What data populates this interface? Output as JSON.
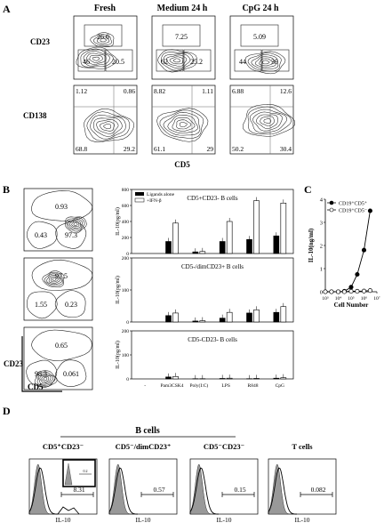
{
  "panel_labels": {
    "A": "A",
    "B": "B",
    "C": "C",
    "D": "D"
  },
  "panelA": {
    "col_titles": [
      "Fresh",
      "Medium 24 h",
      "CpG 24 h"
    ],
    "row_labels": [
      "CD23",
      "CD138"
    ],
    "x_label": "CD5",
    "row1": [
      {
        "top": "26.6",
        "left": "46",
        "right": "20.5"
      },
      {
        "top": "7.25",
        "left": "62",
        "right": "25.2"
      },
      {
        "top": "5.09",
        "left": "44",
        "right": "39"
      }
    ],
    "row2": [
      {
        "ul": "1.12",
        "ur": "0.86",
        "ll": "68.8",
        "lr": "29.2"
      },
      {
        "ul": "8.82",
        "ur": "1.11",
        "ll": "61.1",
        "lr": "29"
      },
      {
        "ul": "6.88",
        "ur": "12.6",
        "ll": "50.2",
        "lr": "30.4"
      }
    ]
  },
  "panelB": {
    "y_label": "CD23",
    "x_label": "CD5",
    "flow": [
      {
        "top": "0.93",
        "left": "0.43",
        "right": "97.3"
      },
      {
        "top": "97.5",
        "left": "1.55",
        "right": "0.23"
      },
      {
        "top": "0.65",
        "left": "98.3",
        "right": "0.061"
      }
    ],
    "legend": [
      "Ligands alone",
      "+IFN-β"
    ]
  },
  "chart_data": [
    {
      "type": "bar",
      "title": "CD5+CD23- B cells",
      "ylabel": "IL-10(pg/ml)",
      "ylim": [
        0,
        800
      ],
      "yticks": [
        "0",
        "200",
        "400",
        "600",
        "800"
      ],
      "categories": [
        "-",
        "Pam3CSK4",
        "Poly(I:C)",
        "LPS",
        "R848",
        "CpG"
      ],
      "series": [
        {
          "name": "Ligands alone",
          "values": [
            0,
            150,
            20,
            150,
            175,
            220
          ]
        },
        {
          "name": "+IFN-β",
          "values": [
            0,
            380,
            25,
            400,
            660,
            630
          ]
        }
      ]
    },
    {
      "type": "bar",
      "title": "CD5-/dimCD23+ B cells",
      "ylabel": "IL-10(pg/ml)",
      "ylim": [
        0,
        200
      ],
      "yticks": [
        "0",
        "100",
        "200"
      ],
      "categories": [
        "-",
        "Pam3CSK4",
        "Poly(I:C)",
        "LPS",
        "R848",
        "CpG"
      ],
      "series": [
        {
          "name": "Ligands alone",
          "values": [
            0,
            20,
            3,
            12,
            28,
            30
          ]
        },
        {
          "name": "+IFN-β",
          "values": [
            0,
            28,
            4,
            30,
            38,
            48
          ]
        }
      ]
    },
    {
      "type": "bar",
      "title": "CD5-CD23- B cells",
      "ylabel": "IL-10(pg/ml)",
      "ylim": [
        0,
        200
      ],
      "yticks": [
        "0",
        "100",
        "200"
      ],
      "categories": [
        "-",
        "Pam3CSK4",
        "Poly(I:C)",
        "LPS",
        "R848",
        "CpG"
      ],
      "series": [
        {
          "name": "Ligands alone",
          "values": [
            0,
            8,
            1,
            2,
            1,
            3
          ]
        },
        {
          "name": "+IFN-β",
          "values": [
            0,
            10,
            1,
            3,
            2,
            5
          ]
        }
      ]
    },
    {
      "type": "line",
      "ylabel": "IL-10(ng/ml)",
      "xlabel": "Cell Number",
      "ylim": [
        0,
        4
      ],
      "yticks": [
        "0",
        "1",
        "2",
        "3",
        "4"
      ],
      "x_log": true,
      "xticks": [
        "10³",
        "10⁴",
        "10⁵",
        "10⁶",
        "10⁷"
      ],
      "series": [
        {
          "name": "CD19⁺CD5⁺",
          "x": [
            1000,
            3000,
            10000,
            30000,
            100000,
            300000,
            1000000,
            3000000
          ],
          "values": [
            0,
            0,
            0,
            0.02,
            0.2,
            0.75,
            1.8,
            3.5
          ]
        },
        {
          "name": "CD19⁺CD5⁻",
          "x": [
            1000,
            3000,
            10000,
            30000,
            100000,
            300000,
            1000000,
            3000000
          ],
          "values": [
            0,
            0,
            0,
            0,
            0.02,
            0.02,
            0.03,
            0.05
          ]
        }
      ]
    }
  ],
  "panelD": {
    "b_cells_title": "B cells",
    "groups": [
      {
        "title": "CD5⁺CD23⁻",
        "value": "8.31",
        "xlabel": "IL-10"
      },
      {
        "title": "CD5⁻/dimCD23⁺",
        "value": "0.57",
        "xlabel": "IL-10"
      },
      {
        "title": "CD5⁻CD23⁻",
        "value": "0.15",
        "xlabel": "IL-10"
      },
      {
        "title": "T cells",
        "value": "0.082",
        "xlabel": "IL-10"
      }
    ],
    "inset_value": "0.2"
  }
}
